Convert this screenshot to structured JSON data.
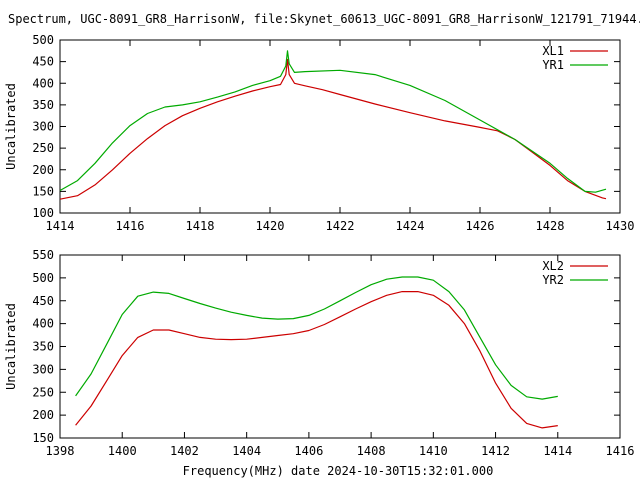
{
  "title": "Spectrum, UGC-8091_GR8_HarrisonW, file:Skynet_60613_UGC-8091_GR8_HarrisonW_121791_71944.spe",
  "xlabel_bottom": "Frequency(MHz) date 2024-10-30T15:32:01.000",
  "chart_data": [
    {
      "type": "line",
      "title": "Spectrum, UGC-8091_GR8_HarrisonW, file:Skynet_60613_UGC-8091_GR8_HarrisonW_121791_71944.spe",
      "xlabel": "",
      "ylabel": "Uncalibrated",
      "xlim": [
        1414,
        1430
      ],
      "ylim": [
        100,
        500
      ],
      "xticks": [
        1414,
        1416,
        1418,
        1420,
        1422,
        1424,
        1426,
        1428,
        1430
      ],
      "yticks": [
        100,
        150,
        200,
        250,
        300,
        350,
        400,
        450,
        500
      ],
      "grid": false,
      "legend": "top-right",
      "series": [
        {
          "name": "XL1",
          "color": "#cc0000",
          "x": [
            1414.0,
            1414.5,
            1415.0,
            1415.5,
            1416.0,
            1416.5,
            1417.0,
            1417.5,
            1418.0,
            1418.5,
            1419.0,
            1419.5,
            1420.0,
            1420.3,
            1420.45,
            1420.5,
            1420.55,
            1420.7,
            1421.0,
            1421.5,
            1422.0,
            1423.0,
            1424.0,
            1425.0,
            1426.0,
            1426.5,
            1427.0,
            1427.5,
            1428.0,
            1428.5,
            1429.0,
            1429.5,
            1429.6
          ],
          "y": [
            132,
            140,
            165,
            200,
            238,
            272,
            302,
            325,
            342,
            357,
            370,
            382,
            392,
            397,
            420,
            455,
            420,
            400,
            394,
            385,
            374,
            352,
            332,
            313,
            298,
            290,
            270,
            240,
            210,
            175,
            150,
            135,
            133
          ]
        },
        {
          "name": "YR1",
          "color": "#00aa00",
          "x": [
            1414.0,
            1414.5,
            1415.0,
            1415.5,
            1416.0,
            1416.5,
            1417.0,
            1417.5,
            1418.0,
            1418.5,
            1419.0,
            1419.5,
            1420.0,
            1420.3,
            1420.45,
            1420.5,
            1420.55,
            1420.7,
            1421.0,
            1422.0,
            1423.0,
            1424.0,
            1425.0,
            1426.0,
            1427.0,
            1428.0,
            1428.5,
            1429.0,
            1429.3,
            1429.6
          ],
          "y": [
            152,
            175,
            215,
            262,
            302,
            330,
            345,
            350,
            357,
            368,
            380,
            395,
            406,
            416,
            440,
            475,
            445,
            425,
            427,
            430,
            420,
            395,
            360,
            315,
            270,
            215,
            180,
            150,
            148,
            155
          ]
        }
      ]
    },
    {
      "type": "line",
      "title": "",
      "xlabel": "Frequency(MHz) date 2024-10-30T15:32:01.000",
      "ylabel": "Uncalibrated",
      "xlim": [
        1398,
        1416
      ],
      "ylim": [
        150,
        550
      ],
      "xticks": [
        1398,
        1400,
        1402,
        1404,
        1406,
        1408,
        1410,
        1412,
        1414,
        1416
      ],
      "yticks": [
        150,
        200,
        250,
        300,
        350,
        400,
        450,
        500,
        550
      ],
      "grid": false,
      "legend": "top-right",
      "series": [
        {
          "name": "XL2",
          "color": "#cc0000",
          "x": [
            1398.5,
            1399.0,
            1399.5,
            1400.0,
            1400.5,
            1401.0,
            1401.5,
            1402.0,
            1402.5,
            1403.0,
            1403.5,
            1404.0,
            1404.5,
            1405.0,
            1405.5,
            1406.0,
            1406.5,
            1407.0,
            1407.5,
            1408.0,
            1408.5,
            1409.0,
            1409.5,
            1410.0,
            1410.5,
            1411.0,
            1411.5,
            1412.0,
            1412.5,
            1413.0,
            1413.5,
            1414.0
          ],
          "y": [
            178,
            220,
            275,
            330,
            370,
            386,
            386,
            378,
            370,
            366,
            365,
            366,
            370,
            374,
            378,
            385,
            398,
            415,
            432,
            448,
            462,
            470,
            470,
            462,
            440,
            400,
            340,
            270,
            215,
            182,
            172,
            177
          ]
        },
        {
          "name": "YR2",
          "color": "#00aa00",
          "x": [
            1398.5,
            1399.0,
            1399.5,
            1400.0,
            1400.5,
            1401.0,
            1401.5,
            1402.0,
            1402.5,
            1403.0,
            1403.5,
            1404.0,
            1404.5,
            1405.0,
            1405.5,
            1406.0,
            1406.5,
            1407.0,
            1407.5,
            1408.0,
            1408.5,
            1409.0,
            1409.5,
            1410.0,
            1410.5,
            1411.0,
            1411.5,
            1412.0,
            1412.5,
            1413.0,
            1413.5,
            1414.0
          ],
          "y": [
            242,
            290,
            355,
            420,
            460,
            469,
            466,
            455,
            444,
            434,
            425,
            418,
            412,
            410,
            411,
            418,
            432,
            450,
            468,
            485,
            497,
            502,
            502,
            495,
            470,
            430,
            370,
            310,
            265,
            240,
            235,
            241
          ]
        }
      ]
    }
  ]
}
